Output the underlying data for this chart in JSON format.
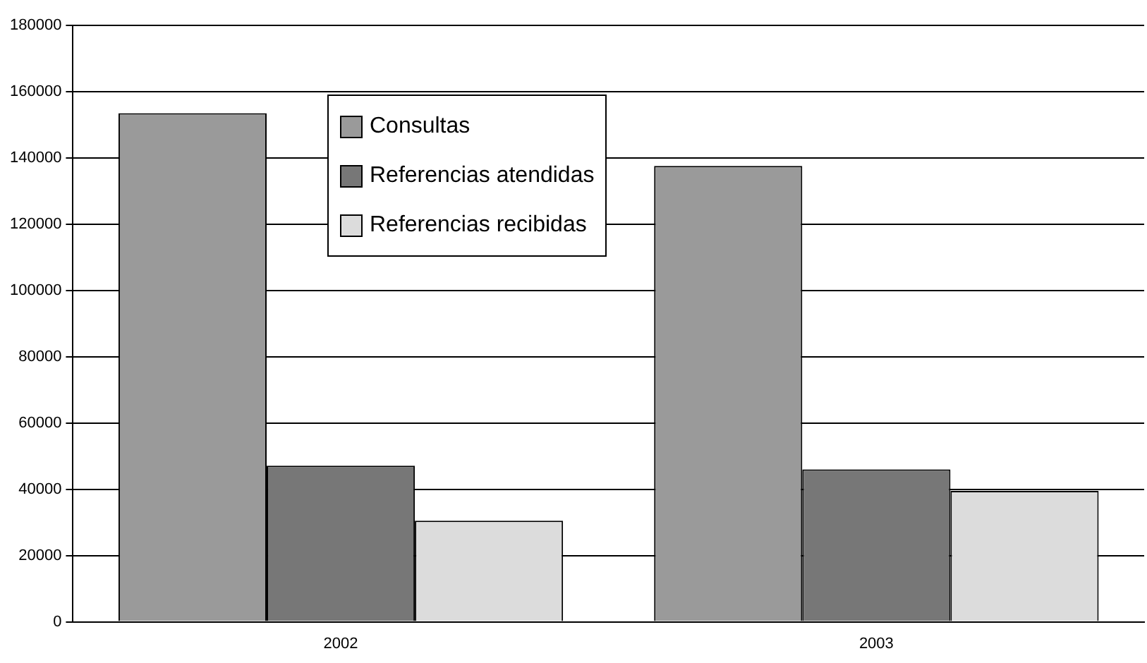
{
  "chart_data": {
    "type": "bar",
    "categories": [
      "2002",
      "2003"
    ],
    "series": [
      {
        "name": "Consultas",
        "color": "#9a9a9a",
        "values": [
          153500,
          137600
        ]
      },
      {
        "name": "Referencias atendidas",
        "color": "#777777",
        "values": [
          47100,
          46000
        ]
      },
      {
        "name": "Referencias recibidas",
        "color": "#dcdcdc",
        "values": [
          30500,
          39500
        ]
      }
    ],
    "ylim": [
      0,
      180000
    ],
    "yticks": [
      0,
      20000,
      40000,
      60000,
      80000,
      100000,
      120000,
      140000,
      160000,
      180000
    ],
    "grid": "y",
    "legend": "top left"
  }
}
